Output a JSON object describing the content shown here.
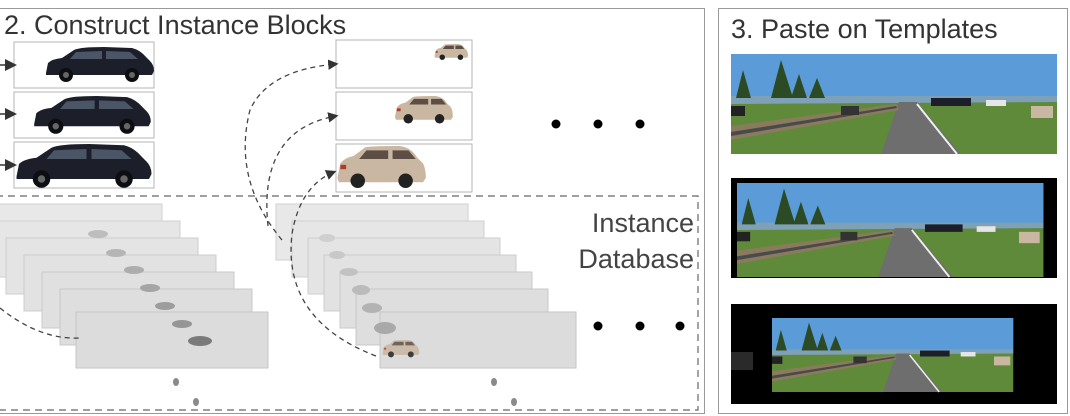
{
  "panels": {
    "construct": {
      "title": "2. Construct Instance Blocks"
    },
    "paste": {
      "title": "3. Paste on Templates"
    }
  },
  "database": {
    "line1": "Instance",
    "line2": "Database"
  },
  "ellipsis": "• • •",
  "colors": {
    "panel_border": "#9a9a9a",
    "dashed": "#555555",
    "sheet": "#e3e3e3",
    "sky": "#5a9bd8",
    "grass": "#5f8a3a",
    "road": "#6e6e6e",
    "car_dark": "#1c1f2a",
    "car_light": "#c9b7a2"
  },
  "icons": [
    "dark-suv-icon",
    "silver-hatchback-icon",
    "street-scene-thumbnail"
  ]
}
